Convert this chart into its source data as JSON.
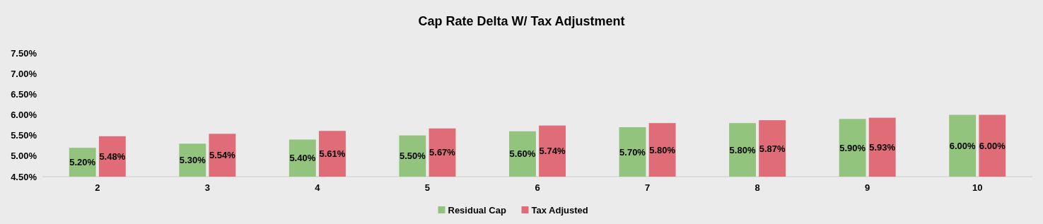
{
  "chart_data": {
    "type": "bar",
    "title": "Cap Rate Delta W/ Tax Adjustment",
    "categories": [
      "2",
      "3",
      "4",
      "5",
      "6",
      "7",
      "8",
      "9",
      "10"
    ],
    "series": [
      {
        "name": "Residual Cap",
        "color": "#93c47d",
        "values": [
          5.2,
          5.3,
          5.4,
          5.5,
          5.6,
          5.7,
          5.8,
          5.9,
          6.0
        ],
        "value_labels": [
          "5.20%",
          "5.30%",
          "5.40%",
          "5.50%",
          "5.60%",
          "5.70%",
          "5.80%",
          "5.90%",
          "6.00%"
        ]
      },
      {
        "name": "Tax Adjusted",
        "color": "#e06c78",
        "values": [
          5.48,
          5.54,
          5.61,
          5.67,
          5.74,
          5.8,
          5.87,
          5.93,
          6.0
        ],
        "value_labels": [
          "5.48%",
          "5.54%",
          "5.61%",
          "5.67%",
          "5.74%",
          "5.80%",
          "5.87%",
          "5.93%",
          "6.00%"
        ]
      }
    ],
    "ylim": [
      4.5,
      7.5
    ],
    "yticks": [
      {
        "value": 4.5,
        "label": "4.50%"
      },
      {
        "value": 5.0,
        "label": "5.00%"
      },
      {
        "value": 5.5,
        "label": "5.50%"
      },
      {
        "value": 6.0,
        "label": "6.00%"
      },
      {
        "value": 6.5,
        "label": "6.50%"
      },
      {
        "value": 7.0,
        "label": "7.00%"
      },
      {
        "value": 7.5,
        "label": "7.50%"
      }
    ],
    "grid": false,
    "legend": "bottom"
  }
}
